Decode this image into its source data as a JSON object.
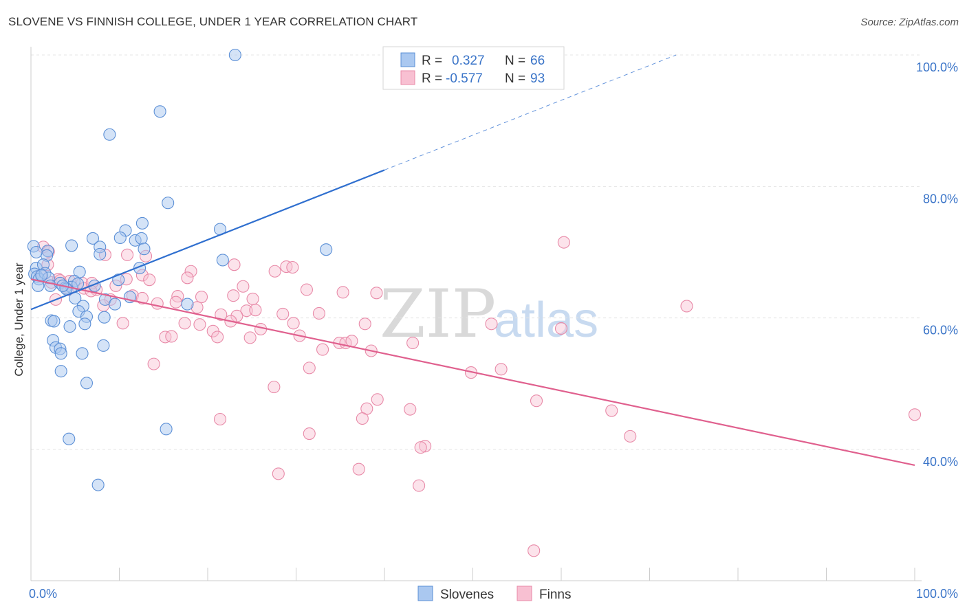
{
  "header": {
    "title": "SLOVENE VS FINNISH COLLEGE, UNDER 1 YEAR CORRELATION CHART",
    "source": "Source: ZipAtlas.com"
  },
  "watermark": {
    "zip": "ZIP",
    "atlas": "atlas"
  },
  "legend": {
    "slovenes": {
      "r_label": "R =",
      "r_value": "0.327",
      "n_label": "N =",
      "n_value": "66"
    },
    "finns": {
      "r_label": "R =",
      "r_value": "-0.577",
      "n_label": "N =",
      "n_value": "93"
    }
  },
  "bottom_legend": {
    "slovenes": "Slovenes",
    "finns": "Finns"
  },
  "colors": {
    "slovenes_fill": "#aac8f0",
    "slovenes_stroke": "#5b8fd6",
    "slovenes_line": "#2f6fcf",
    "finns_fill": "#f8c0d2",
    "finns_stroke": "#e88aa8",
    "finns_line": "#e0608e",
    "grid": "#e4e4e4",
    "axis_text": "#3a74c8"
  },
  "chart_data": {
    "type": "scatter",
    "title": "SLOVENE VS FINNISH COLLEGE, UNDER 1 YEAR CORRELATION CHART",
    "xlabel": "",
    "ylabel": "College, Under 1 year",
    "xlim": [
      0,
      100
    ],
    "ylim": [
      20,
      104
    ],
    "x_tick_labels": [
      {
        "value": 0,
        "label": "0.0%"
      },
      {
        "value": 100,
        "label": "100.0%"
      }
    ],
    "y_tick_labels": [
      {
        "value": 40,
        "label": "40.0%"
      },
      {
        "value": 60,
        "label": "60.0%"
      },
      {
        "value": 80,
        "label": "80.0%"
      },
      {
        "value": 100,
        "label": "100.0%"
      }
    ],
    "x_ticks": [
      0,
      10,
      20,
      30,
      40,
      50,
      60,
      70,
      80,
      90,
      100
    ],
    "y_grid": [
      40,
      60,
      80,
      100
    ],
    "series": [
      {
        "name": "Slovenes",
        "r": 0.327,
        "n": 66,
        "trend": {
          "x": [
            0,
            40
          ],
          "y": [
            61.3,
            82.5
          ]
        },
        "trend_dashed": {
          "x": [
            40,
            73
          ],
          "y": [
            82.5,
            100
          ]
        },
        "points": [
          [
            23.1,
            100.0
          ],
          [
            14.6,
            91.4
          ],
          [
            8.9,
            87.9
          ],
          [
            15.5,
            77.5
          ],
          [
            21.4,
            73.5
          ],
          [
            10.7,
            73.3
          ],
          [
            10.1,
            72.2
          ],
          [
            7.0,
            72.1
          ],
          [
            11.8,
            71.8
          ],
          [
            12.6,
            74.4
          ],
          [
            12.5,
            72.1
          ],
          [
            7.8,
            70.8
          ],
          [
            4.6,
            71.0
          ],
          [
            12.8,
            70.5
          ],
          [
            33.4,
            70.4
          ],
          [
            21.7,
            68.8
          ],
          [
            0.3,
            70.9
          ],
          [
            1.9,
            70.2
          ],
          [
            0.6,
            67.6
          ],
          [
            7.8,
            69.7
          ],
          [
            1.8,
            69.5
          ],
          [
            1.4,
            68.1
          ],
          [
            0.4,
            66.7
          ],
          [
            0.7,
            66.3
          ],
          [
            0.9,
            65.9
          ],
          [
            1.6,
            66.8
          ],
          [
            2.0,
            66.1
          ],
          [
            5.5,
            67.0
          ],
          [
            12.3,
            67.6
          ],
          [
            9.9,
            65.8
          ],
          [
            0.8,
            64.9
          ],
          [
            2.2,
            64.9
          ],
          [
            3.3,
            65.3
          ],
          [
            4.9,
            65.6
          ],
          [
            3.9,
            64.6
          ],
          [
            4.6,
            64.7
          ],
          [
            4.0,
            64.4
          ],
          [
            7.2,
            64.9
          ],
          [
            5.0,
            63.0
          ],
          [
            8.4,
            62.8
          ],
          [
            9.5,
            62.1
          ],
          [
            11.2,
            63.2
          ],
          [
            17.7,
            62.1
          ],
          [
            5.9,
            61.8
          ],
          [
            5.4,
            61.0
          ],
          [
            6.3,
            60.2
          ],
          [
            8.3,
            60.1
          ],
          [
            2.3,
            59.6
          ],
          [
            2.6,
            59.5
          ],
          [
            6.1,
            59.1
          ],
          [
            4.4,
            58.7
          ],
          [
            2.5,
            56.6
          ],
          [
            8.2,
            55.8
          ],
          [
            2.8,
            55.5
          ],
          [
            3.3,
            55.3
          ],
          [
            3.4,
            54.6
          ],
          [
            5.8,
            54.6
          ],
          [
            3.4,
            51.9
          ],
          [
            6.3,
            50.1
          ],
          [
            15.3,
            43.1
          ],
          [
            4.3,
            41.6
          ],
          [
            7.6,
            34.6
          ],
          [
            0.6,
            70.0
          ],
          [
            1.2,
            66.5
          ],
          [
            3.6,
            64.9
          ],
          [
            5.3,
            65.2
          ]
        ]
      },
      {
        "name": "Finns",
        "r": -0.577,
        "n": 93,
        "trend": {
          "x": [
            0,
            100
          ],
          "y": [
            65.9,
            37.6
          ]
        },
        "points": [
          [
            60.3,
            71.5
          ],
          [
            1.4,
            70.8
          ],
          [
            2.0,
            70.1
          ],
          [
            1.9,
            68.1
          ],
          [
            8.4,
            69.6
          ],
          [
            10.9,
            69.6
          ],
          [
            13.0,
            69.4
          ],
          [
            23.0,
            68.1
          ],
          [
            28.9,
            67.8
          ],
          [
            29.6,
            67.7
          ],
          [
            27.6,
            67.1
          ],
          [
            18.1,
            67.1
          ],
          [
            12.6,
            66.5
          ],
          [
            17.7,
            66.1
          ],
          [
            10.8,
            65.9
          ],
          [
            13.4,
            65.8
          ],
          [
            2.3,
            65.4
          ],
          [
            4.4,
            65.6
          ],
          [
            5.8,
            65.3
          ],
          [
            6.0,
            64.5
          ],
          [
            9.6,
            64.9
          ],
          [
            24.0,
            64.8
          ],
          [
            31.2,
            64.3
          ],
          [
            35.3,
            63.9
          ],
          [
            39.1,
            63.8
          ],
          [
            7.4,
            64.3
          ],
          [
            9.0,
            62.8
          ],
          [
            11.5,
            63.4
          ],
          [
            12.6,
            63.0
          ],
          [
            16.6,
            63.3
          ],
          [
            19.3,
            63.2
          ],
          [
            22.9,
            63.4
          ],
          [
            2.8,
            62.8
          ],
          [
            8.2,
            61.9
          ],
          [
            14.3,
            62.2
          ],
          [
            16.4,
            62.4
          ],
          [
            18.8,
            61.6
          ],
          [
            25.1,
            62.9
          ],
          [
            24.4,
            61.1
          ],
          [
            25.4,
            61.2
          ],
          [
            74.2,
            61.8
          ],
          [
            21.5,
            60.5
          ],
          [
            23.3,
            60.3
          ],
          [
            28.5,
            60.6
          ],
          [
            32.6,
            60.7
          ],
          [
            10.4,
            59.2
          ],
          [
            17.4,
            59.2
          ],
          [
            19.1,
            59.0
          ],
          [
            22.6,
            59.5
          ],
          [
            29.7,
            59.2
          ],
          [
            37.8,
            59.1
          ],
          [
            52.1,
            59.1
          ],
          [
            60.0,
            58.4
          ],
          [
            26.0,
            58.3
          ],
          [
            20.6,
            58.0
          ],
          [
            30.4,
            57.3
          ],
          [
            15.2,
            57.1
          ],
          [
            15.9,
            57.2
          ],
          [
            21.1,
            57.1
          ],
          [
            24.8,
            57.0
          ],
          [
            34.9,
            56.2
          ],
          [
            35.6,
            56.2
          ],
          [
            36.3,
            56.5
          ],
          [
            43.2,
            56.2
          ],
          [
            33.0,
            55.2
          ],
          [
            38.5,
            55.0
          ],
          [
            13.9,
            53.0
          ],
          [
            31.5,
            52.4
          ],
          [
            53.2,
            52.2
          ],
          [
            49.8,
            51.7
          ],
          [
            27.5,
            49.5
          ],
          [
            39.2,
            47.6
          ],
          [
            57.2,
            47.4
          ],
          [
            38.0,
            46.2
          ],
          [
            42.9,
            46.1
          ],
          [
            65.7,
            45.9
          ],
          [
            100.0,
            45.3
          ],
          [
            21.4,
            44.6
          ],
          [
            37.5,
            44.7
          ],
          [
            31.5,
            42.4
          ],
          [
            67.8,
            42.0
          ],
          [
            44.6,
            40.5
          ],
          [
            44.1,
            40.3
          ],
          [
            28.0,
            36.3
          ],
          [
            37.1,
            37.0
          ],
          [
            43.9,
            34.5
          ],
          [
            56.9,
            24.6
          ],
          [
            3.1,
            65.9
          ],
          [
            6.9,
            65.3
          ],
          [
            1.1,
            66.5
          ],
          [
            3.3,
            65.7
          ],
          [
            4.2,
            64.3
          ],
          [
            6.8,
            64.1
          ]
        ]
      }
    ]
  }
}
